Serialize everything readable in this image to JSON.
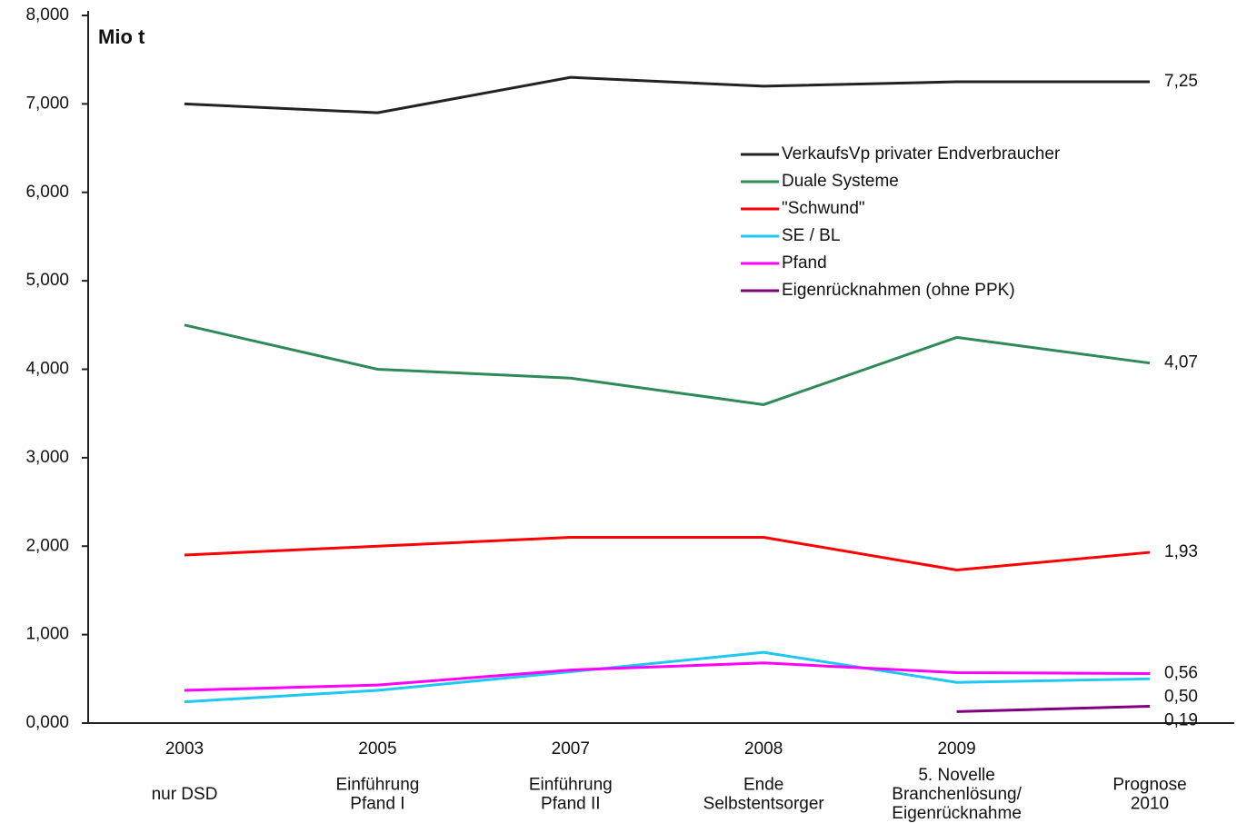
{
  "chart_data": {
    "type": "line",
    "y_label": "Mio t",
    "categories": [
      "2003",
      "2005",
      "2007",
      "2008",
      "2009",
      null
    ],
    "category_notes": [
      [
        "nur DSD"
      ],
      [
        "Einführung",
        "Pfand I"
      ],
      [
        "Einführung",
        "Pfand II"
      ],
      [
        "Ende",
        "Selbstentsorger"
      ],
      [
        "5. Novelle",
        "Branchenlösung/",
        "Eigenrücknahme"
      ],
      [
        "Prognose",
        "2010"
      ]
    ],
    "series": [
      {
        "name": "VerkaufsVp privater Endverbraucher",
        "color": "#222222",
        "values": [
          7.0,
          6.9,
          7.3,
          7.2,
          7.25,
          7.25
        ],
        "value_labels": [
          null,
          null,
          null,
          null,
          null,
          "7,25"
        ]
      },
      {
        "name": "Duale Systeme",
        "color": "#2e8b57",
        "values": [
          4.5,
          4.0,
          3.9,
          3.6,
          4.36,
          4.07
        ],
        "value_labels": [
          null,
          null,
          null,
          null,
          null,
          "4,07"
        ]
      },
      {
        "name": "\"Schwund\"",
        "color": "#ff0000",
        "values": [
          1.9,
          2.0,
          2.1,
          2.1,
          1.73,
          1.93
        ],
        "value_labels": [
          null,
          null,
          null,
          null,
          null,
          "1,93"
        ]
      },
      {
        "name": "SE / BL",
        "color": "#1ec8f0",
        "values": [
          0.24,
          0.37,
          0.58,
          0.8,
          0.46,
          0.5
        ],
        "value_labels": [
          null,
          null,
          null,
          null,
          null,
          "0,50"
        ]
      },
      {
        "name": "Pfand",
        "color": "#ff00ff",
        "values": [
          0.37,
          0.43,
          0.6,
          0.68,
          0.57,
          0.56
        ],
        "value_labels": [
          null,
          null,
          null,
          null,
          null,
          "0,56"
        ]
      },
      {
        "name": "Eigenrücknahmen (ohne PPK)",
        "color": "#800080",
        "values": [
          null,
          null,
          null,
          null,
          0.13,
          0.19
        ],
        "value_labels": [
          null,
          null,
          null,
          null,
          null,
          "0,19"
        ]
      }
    ],
    "ylim": [
      0,
      8
    ],
    "yticks": [
      {
        "value": 0,
        "label": "0,000"
      },
      {
        "value": 1,
        "label": "1,000"
      },
      {
        "value": 2,
        "label": "2,000"
      },
      {
        "value": 3,
        "label": "3,000"
      },
      {
        "value": 4,
        "label": "4,000"
      },
      {
        "value": 5,
        "label": "5,000"
      },
      {
        "value": 6,
        "label": "6,000"
      },
      {
        "value": 7,
        "label": "7,000"
      },
      {
        "value": 8,
        "label": "8,000"
      }
    ],
    "legend_position": "upper right",
    "grid": false
  }
}
